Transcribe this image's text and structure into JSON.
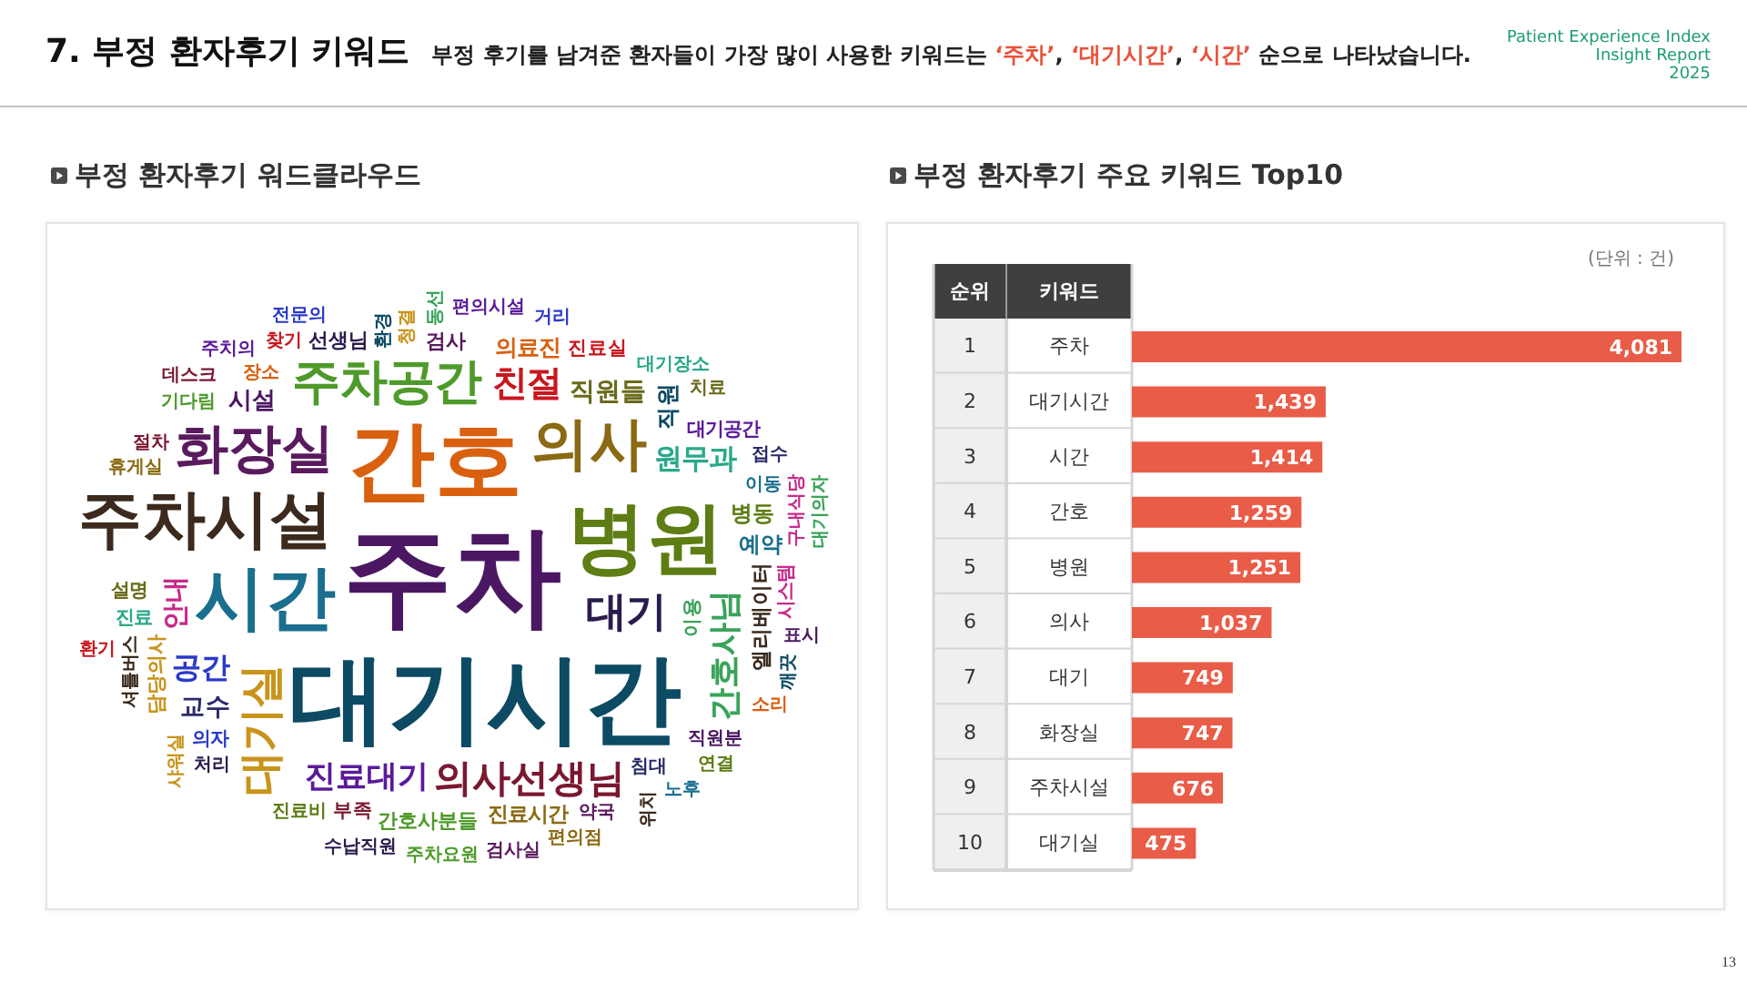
{
  "chart_data": [
    {
      "type": "other",
      "title": "7. 부정 환자후기 키워드",
      "subtitle": "부정 후기를 남겨준 환자들이 가장 많이 사용한 키워드는 ‘주차’, ‘대기시간’, ‘시간’ 순으로 나타났습니다.",
      "annotations": [
        "Patient Experience Index",
        "Insight Report",
        "2025",
        "13"
      ]
    },
    {
      "type": "other",
      "title": "부정 환자후기 워드클라우드",
      "categories": [
        "주차",
        "대기시간",
        "간호",
        "병원",
        "시간",
        "주차시설",
        "의사",
        "화장실",
        "주차공간",
        "대기실",
        "대기",
        "의사선생님",
        "친절",
        "간호사님",
        "진료대기",
        "공간",
        "원무과",
        "안내",
        "직원들",
        "교수",
        "시설",
        "직원",
        "의료진",
        "병동",
        "예약",
        "엘리베이터",
        "진료시간",
        "검사",
        "간호사분들",
        "담당의사",
        "선생님",
        "부족",
        "진료실",
        "이용",
        "대기공간",
        "의자",
        "진료",
        "시스템",
        "설명",
        "침대",
        "직원분",
        "환경",
        "장소",
        "진료비",
        "이동",
        "셔틀버스",
        "휴게실",
        "약국",
        "기다림",
        "청결",
        "처리",
        "절차",
        "찾기",
        "동선",
        "편의시설",
        "거리",
        "대기장소",
        "구내식당",
        "치료",
        "접수",
        "표시",
        "깨끗",
        "소리",
        "연결",
        "노후",
        "위치",
        "편의점",
        "검사실",
        "주차요원",
        "샤워실",
        "수납직원",
        "데스크",
        "환기",
        "대기의자",
        "주치의",
        "전문의"
      ]
    },
    {
      "type": "bar",
      "title": "부정 환자후기 주요 키워드 Top10",
      "orientation": "horizontal",
      "categories": [
        "주차",
        "대기시간",
        "시간",
        "간호",
        "병원",
        "의사",
        "대기",
        "화장실",
        "주차시설",
        "대기실"
      ],
      "values": [
        4081,
        1439,
        1414,
        1259,
        1251,
        1037,
        749,
        747,
        676,
        475
      ],
      "value_labels": [
        "4,081",
        "1,439",
        "1,414",
        "1,259",
        "1,251",
        "1,037",
        "749",
        "747",
        "676",
        "475"
      ],
      "color": "#e95c48",
      "ylabel": "키워드",
      "annotations": [
        "(단위 : 건)",
        "순위",
        "1",
        "2",
        "3",
        "4",
        "5",
        "6",
        "7",
        "8",
        "9",
        "10"
      ]
    }
  ]
}
